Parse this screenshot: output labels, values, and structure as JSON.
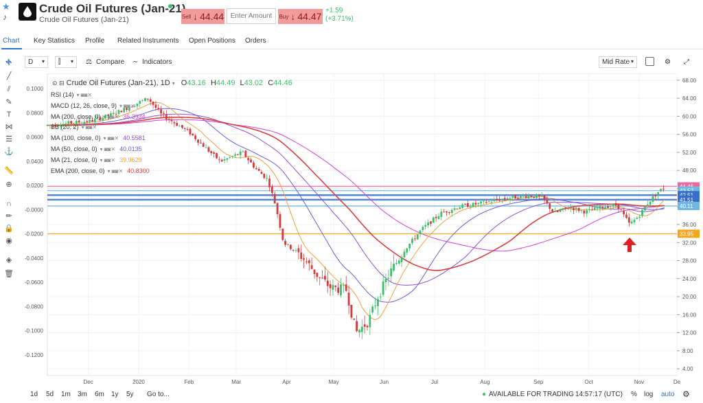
{
  "header": {
    "title": "Crude Oil Futures (Jan-21)",
    "subtitle": "Crude Oil Futures (Jan-21)",
    "sell_label": "Sell",
    "sell_price": "44.44",
    "amount_placeholder": "Enter Amount",
    "buy_label": "Buy",
    "buy_price": "44.47",
    "change_abs": "+1.59",
    "change_pct": "(+3.71%)",
    "arrow": "↓"
  },
  "tabs": [
    {
      "label": "Chart"
    },
    {
      "label": "Key Statistics"
    },
    {
      "label": "Profile"
    },
    {
      "label": "Related Instruments"
    },
    {
      "label": "Open Positions"
    },
    {
      "label": "Orders"
    }
  ],
  "toolbar": {
    "interval": "D",
    "compare": "Compare",
    "indicators": "Indicators",
    "price_type": "Mid Rate"
  },
  "legend": {
    "title": "Crude Oil Futures (Jan-21), 1D",
    "o_label": "O",
    "o": "43.16",
    "h_label": "H",
    "h": "44.49",
    "l_label": "L",
    "l": "43.02",
    "c_label": "C",
    "c": "44.46",
    "indicators": [
      {
        "name": "RSI (14)",
        "value": "",
        "color": "#333333"
      },
      {
        "name": "MACD (12, 26, close, 9)",
        "value": "",
        "color": "#333333"
      },
      {
        "name": "MA (200, close, 0)",
        "value": "36.3934",
        "color": "#d63fd6"
      },
      {
        "name": "BB (20, 2)",
        "value": "",
        "color": "#333333"
      },
      {
        "name": "MA (100, close, 0)",
        "value": "40.5581",
        "color": "#8a4fd6"
      },
      {
        "name": "MA (50, close, 0)",
        "value": "40.0135",
        "color": "#6b5bd6"
      },
      {
        "name": "MA (21, close, 0)",
        "value": "39.9629",
        "color": "#f0a040"
      },
      {
        "name": "EMA (200, close, 0)",
        "value": "40.8300",
        "color": "#d64040"
      }
    ]
  },
  "chart_data": {
    "type": "line",
    "title": "Crude Oil Futures (Jan-21), 1D",
    "x_labels": [
      "Dec",
      "2020",
      "Feb",
      "Mar",
      "Apr",
      "May",
      "Jun",
      "Jul",
      "Aug",
      "Sep",
      "Oct",
      "Nov",
      "De"
    ],
    "y_right_ticks": [
      "68.00",
      "64.00",
      "60.00",
      "56.00",
      "52.00",
      "48.00",
      "44.00",
      "40.00",
      "36.00",
      "32.00",
      "28.00",
      "24.00",
      "20.00",
      "16.00",
      "12.00",
      "8.00",
      "4.00"
    ],
    "y_left_ticks": [
      "0.1000",
      "0.0800",
      "0.0600",
      "0.0400",
      "0.0200",
      "-0.0000",
      "-0.0200",
      "-0.0400",
      "-0.0600",
      "-0.0800",
      "-0.1000",
      "-0.1200"
    ],
    "ylim_right": [
      2.5,
      69.5
    ],
    "price_path": [
      [
        0,
        58.0
      ],
      [
        0.035,
        58.5
      ],
      [
        0.07,
        59.0
      ],
      [
        0.105,
        60.5
      ],
      [
        0.16,
        64.0
      ],
      [
        0.18,
        60.5
      ],
      [
        0.225,
        56.5
      ],
      [
        0.255,
        52.5
      ],
      [
        0.275,
        50.0
      ],
      [
        0.31,
        52.0
      ],
      [
        0.33,
        48.5
      ],
      [
        0.35,
        46.0
      ],
      [
        0.363,
        40.0
      ],
      [
        0.375,
        32.0
      ],
      [
        0.395,
        30.0
      ],
      [
        0.41,
        28.0
      ],
      [
        0.43,
        24.5
      ],
      [
        0.45,
        22.0
      ],
      [
        0.475,
        21.5
      ],
      [
        0.49,
        12.0
      ],
      [
        0.51,
        14.5
      ],
      [
        0.525,
        20.0
      ],
      [
        0.545,
        25.5
      ],
      [
        0.565,
        30.0
      ],
      [
        0.595,
        35.0
      ],
      [
        0.625,
        38.5
      ],
      [
        0.655,
        40.0
      ],
      [
        0.685,
        40.6
      ],
      [
        0.715,
        41.5
      ],
      [
        0.745,
        42.1
      ],
      [
        0.765,
        42.4
      ],
      [
        0.785,
        42.0
      ],
      [
        0.805,
        38.5
      ],
      [
        0.83,
        39.8
      ],
      [
        0.855,
        38.8
      ],
      [
        0.885,
        40.0
      ],
      [
        0.905,
        40.3
      ],
      [
        0.925,
        36.0
      ],
      [
        0.94,
        38.0
      ],
      [
        0.955,
        41.0
      ],
      [
        0.97,
        43.2
      ],
      [
        0.982,
        44.46
      ]
    ],
    "series": [
      {
        "name": "MA (200, close, 0)",
        "value": 36.3934,
        "color": "#d63fd6"
      },
      {
        "name": "MA (100, close, 0)",
        "value": 40.5581,
        "color": "#8a4fd6"
      },
      {
        "name": "MA (50, close, 0)",
        "value": 40.0135,
        "color": "#6b5bd6"
      },
      {
        "name": "MA (21, close, 0)",
        "value": 39.9629,
        "color": "#f0a040"
      },
      {
        "name": "EMA (200, close, 0)",
        "value": 40.83,
        "color": "#d64040"
      }
    ],
    "horizontal_levels": [
      {
        "value": 44.46,
        "label": "44.46",
        "color": "#e86aa0"
      },
      {
        "value": 43.52,
        "label": "43.52",
        "color": "#6fb7e0"
      },
      {
        "value": 42.51,
        "label": "42.51",
        "color": "#3a6fc8"
      },
      {
        "value": 41.51,
        "label": "41.51",
        "color": "#3a6fc8"
      },
      {
        "value": 40.11,
        "label": "40.11",
        "color": "#6fb7e0"
      },
      {
        "value": 33.95,
        "label": "33.95",
        "color": "#f4a620"
      }
    ],
    "annotation": "red up arrow under Nov low"
  },
  "bottom": {
    "ranges": [
      "1d",
      "5d",
      "1m",
      "3m",
      "6m",
      "1y",
      "5y",
      "Go to..."
    ],
    "status": "AVAILABLE FOR TRADING",
    "time": "14:57:17 (UTC)",
    "pct": "%",
    "log": "log",
    "auto": "auto"
  },
  "colors": {
    "accent": "#2a72c4",
    "up": "#3fbf6a",
    "down": "#d63a3a",
    "sell_bg": "#f19b9b"
  }
}
